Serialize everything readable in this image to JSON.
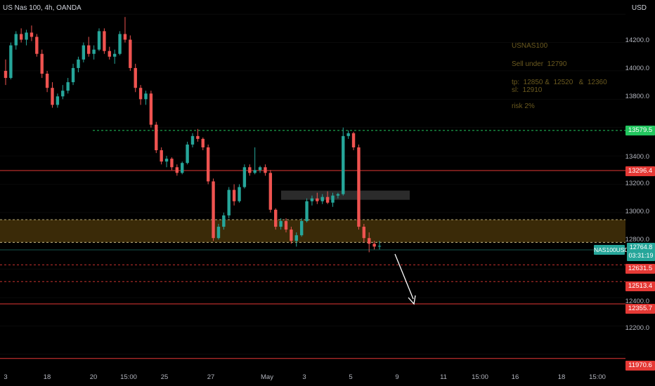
{
  "header": {
    "symbol": "US Nas 100, 4h, OANDA",
    "currency": "USD"
  },
  "annotation": {
    "lines": [
      "USNAS100",
      "Sell under  12790",
      "tp:  12850 &  12520   &  12360\nsl:  12910",
      "risk 2%"
    ]
  },
  "current_price": {
    "symbol_label": "NAS100USD",
    "price": "12764.8",
    "countdown": "03:31:19"
  },
  "level_tags": [
    {
      "value": "13579.5",
      "color": "#22c55e"
    },
    {
      "value": "13296.4",
      "color": "#e53935"
    },
    {
      "value": "12631.5",
      "color": "#e53935"
    },
    {
      "value": "12513.4",
      "color": "#e53935"
    },
    {
      "value": "12355.7",
      "color": "#e53935"
    },
    {
      "value": "11970.6",
      "color": "#e53935"
    }
  ],
  "y_ticks": [
    "14200.0",
    "14000.0",
    "13800.0",
    "13400.0",
    "13200.0",
    "13000.0",
    "12800.0",
    "12400.0",
    "12200.0"
  ],
  "x_ticks": [
    "3",
    "18",
    "20",
    "15:00",
    "25",
    "27",
    "May",
    "3",
    "5",
    "9",
    "11",
    "15:00",
    "16",
    "18",
    "15:00"
  ],
  "colors": {
    "up": "#26a69a",
    "down": "#ef5350",
    "zone": "#3a2a08",
    "support_green": "#22c55e",
    "resistance_red": "#e53935"
  },
  "chart_data": {
    "type": "candlestick",
    "ylim": [
      11900,
      14500
    ],
    "horizontal_levels": [
      13579.5,
      13296.4,
      12631.5,
      12513.4,
      12355.7,
      11970.6
    ],
    "zone": [
      12790,
      12950
    ],
    "candles": [
      [
        14000,
        14080,
        13900,
        13950
      ],
      [
        13950,
        14200,
        13940,
        14180
      ],
      [
        14180,
        14280,
        14150,
        14260
      ],
      [
        14260,
        14300,
        14200,
        14220
      ],
      [
        14220,
        14290,
        14180,
        14270
      ],
      [
        14270,
        14320,
        14210,
        14240
      ],
      [
        14240,
        14260,
        14100,
        14120
      ],
      [
        14120,
        14150,
        13950,
        13980
      ],
      [
        13980,
        14000,
        13850,
        13880
      ],
      [
        13880,
        13920,
        13740,
        13760
      ],
      [
        13760,
        13840,
        13740,
        13820
      ],
      [
        13820,
        13900,
        13800,
        13860
      ],
      [
        13860,
        13950,
        13840,
        13920
      ],
      [
        13920,
        14050,
        13900,
        14020
      ],
      [
        14020,
        14100,
        13990,
        14080
      ],
      [
        14080,
        14200,
        14060,
        14180
      ],
      [
        14180,
        14240,
        14100,
        14120
      ],
      [
        14120,
        14180,
        14080,
        14150
      ],
      [
        14150,
        14300,
        14140,
        14280
      ],
      [
        14280,
        14300,
        14120,
        14140
      ],
      [
        14140,
        14170,
        14080,
        14100
      ],
      [
        14100,
        14150,
        14050,
        14120
      ],
      [
        14120,
        14280,
        14110,
        14260
      ],
      [
        14260,
        14380,
        14200,
        14220
      ],
      [
        14220,
        14250,
        14000,
        14020
      ],
      [
        14020,
        14050,
        13850,
        13880
      ],
      [
        13880,
        13900,
        13760,
        13800
      ],
      [
        13800,
        13860,
        13760,
        13840
      ],
      [
        13840,
        13860,
        13600,
        13620
      ],
      [
        13620,
        13640,
        13420,
        13440
      ],
      [
        13440,
        13460,
        13340,
        13360
      ],
      [
        13360,
        13400,
        13320,
        13380
      ],
      [
        13380,
        13390,
        13300,
        13320
      ],
      [
        13320,
        13340,
        13260,
        13280
      ],
      [
        13280,
        13360,
        13270,
        13350
      ],
      [
        13350,
        13500,
        13340,
        13480
      ],
      [
        13480,
        13560,
        13460,
        13540
      ],
      [
        13540,
        13590,
        13500,
        13520
      ],
      [
        13520,
        13530,
        13440,
        13460
      ],
      [
        13460,
        13480,
        13200,
        13220
      ],
      [
        13220,
        13240,
        12800,
        12820
      ],
      [
        12820,
        12920,
        12810,
        12900
      ],
      [
        12900,
        13000,
        12880,
        12980
      ],
      [
        12980,
        13180,
        12960,
        13160
      ],
      [
        13160,
        13200,
        13050,
        13080
      ],
      [
        13080,
        13200,
        13070,
        13180
      ],
      [
        13180,
        13340,
        13170,
        13320
      ],
      [
        13320,
        13340,
        13260,
        13280
      ],
      [
        13280,
        13460,
        13270,
        13300
      ],
      [
        13300,
        13330,
        13280,
        13320
      ],
      [
        13320,
        13340,
        13260,
        13280
      ],
      [
        13280,
        13300,
        13000,
        13020
      ],
      [
        13020,
        13030,
        12880,
        12900
      ],
      [
        12900,
        12960,
        12880,
        12940
      ],
      [
        12940,
        12960,
        12860,
        12880
      ],
      [
        12880,
        12900,
        12780,
        12800
      ],
      [
        12800,
        12860,
        12760,
        12840
      ],
      [
        12840,
        12960,
        12830,
        12940
      ],
      [
        12940,
        13100,
        12930,
        13080
      ],
      [
        13080,
        13120,
        13050,
        13100
      ],
      [
        13100,
        13140,
        13060,
        13080
      ],
      [
        13080,
        13130,
        13060,
        13110
      ],
      [
        13110,
        13150,
        13060,
        13070
      ],
      [
        13070,
        13140,
        13040,
        13120
      ],
      [
        13120,
        13140,
        13100,
        13130
      ],
      [
        13130,
        13600,
        13120,
        13540
      ],
      [
        13540,
        13580,
        13520,
        13560
      ],
      [
        13560,
        13570,
        13440,
        13460
      ],
      [
        13460,
        13480,
        12880,
        12900
      ],
      [
        12900,
        12920,
        12790,
        12820
      ],
      [
        12820,
        12860,
        12720,
        12780
      ],
      [
        12780,
        12800,
        12740,
        12760
      ],
      [
        12760,
        12800,
        12740,
        12765
      ]
    ]
  }
}
